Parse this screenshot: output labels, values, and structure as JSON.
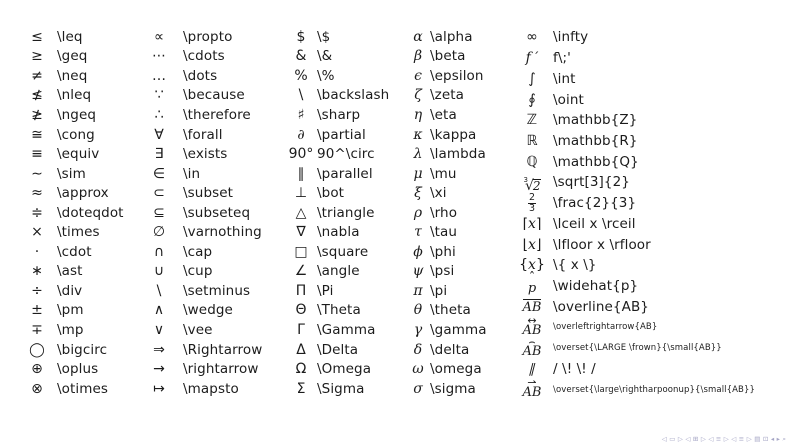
{
  "slide": {
    "background": "#ffffff",
    "text_color": "#1c1c1c"
  },
  "columns": [
    {
      "rows": [
        {
          "sym": "≤",
          "cmd": "\\leq"
        },
        {
          "sym": "≥",
          "cmd": "\\geq"
        },
        {
          "sym": "≠",
          "cmd": "\\neq"
        },
        {
          "sym": "≰",
          "cmd": "\\nleq"
        },
        {
          "sym": "≱",
          "cmd": "\\ngeq"
        },
        {
          "sym": "≅",
          "cmd": "\\cong"
        },
        {
          "sym": "≡",
          "cmd": "\\equiv"
        },
        {
          "sym": "∼",
          "cmd": "\\sim"
        },
        {
          "sym": "≈",
          "cmd": "\\approx"
        },
        {
          "sym": "≑",
          "cmd": "\\doteqdot"
        },
        {
          "sym": "×",
          "cmd": "\\times"
        },
        {
          "sym": "·",
          "cmd": "\\cdot"
        },
        {
          "sym": "∗",
          "cmd": "\\ast"
        },
        {
          "sym": "÷",
          "cmd": "\\div"
        },
        {
          "sym": "±",
          "cmd": "\\pm"
        },
        {
          "sym": "∓",
          "cmd": "\\mp"
        },
        {
          "sym": "◯",
          "cmd": "\\bigcirc"
        },
        {
          "sym": "⊕",
          "cmd": "\\oplus"
        },
        {
          "sym": "⊗",
          "cmd": "\\otimes"
        }
      ]
    },
    {
      "rows": [
        {
          "sym": "∝",
          "cmd": "\\propto"
        },
        {
          "sym": "⋯",
          "cmd": "\\cdots"
        },
        {
          "sym": "…",
          "cmd": "\\dots"
        },
        {
          "sym": "∵",
          "cmd": "\\because"
        },
        {
          "sym": "∴",
          "cmd": "\\therefore"
        },
        {
          "sym": "∀",
          "cmd": "\\forall"
        },
        {
          "sym": "∃",
          "cmd": "\\exists"
        },
        {
          "sym": "∈",
          "cmd": "\\in"
        },
        {
          "sym": "⊂",
          "cmd": "\\subset"
        },
        {
          "sym": "⊆",
          "cmd": "\\subseteq"
        },
        {
          "sym": "∅",
          "cmd": "\\varnothing"
        },
        {
          "sym": "∩",
          "cmd": "\\cap"
        },
        {
          "sym": "∪",
          "cmd": "\\cup"
        },
        {
          "sym": "\\",
          "cmd": "\\setminus"
        },
        {
          "sym": "∧",
          "cmd": "\\wedge"
        },
        {
          "sym": "∨",
          "cmd": "\\vee"
        },
        {
          "sym": "⇒",
          "cmd": "\\Rightarrow"
        },
        {
          "sym": "→",
          "cmd": "\\rightarrow"
        },
        {
          "sym": "↦",
          "cmd": "\\mapsto"
        }
      ]
    },
    {
      "rows": [
        {
          "sym": "$",
          "cmd": "\\$"
        },
        {
          "sym": "&",
          "cmd": "\\&"
        },
        {
          "sym": "%",
          "cmd": "\\%"
        },
        {
          "sym": "\\",
          "cmd": "\\backslash"
        },
        {
          "sym": "♯",
          "cmd": "\\sharp"
        },
        {
          "sym": "∂",
          "cmd": "\\partial",
          "italic": true
        },
        {
          "sym": "90°",
          "cmd": "90^\\circ"
        },
        {
          "sym": "∥",
          "cmd": "\\parallel"
        },
        {
          "sym": "⊥",
          "cmd": "\\bot"
        },
        {
          "sym": "△",
          "cmd": "\\triangle"
        },
        {
          "sym": "∇",
          "cmd": "\\nabla"
        },
        {
          "sym": "□",
          "cmd": "\\square"
        },
        {
          "sym": "∠",
          "cmd": "\\angle"
        },
        {
          "sym": "Π",
          "cmd": "\\Pi"
        },
        {
          "sym": "Θ",
          "cmd": "\\Theta"
        },
        {
          "sym": "Γ",
          "cmd": "\\Gamma"
        },
        {
          "sym": "Δ",
          "cmd": "\\Delta"
        },
        {
          "sym": "Ω",
          "cmd": "\\Omega"
        },
        {
          "sym": "Σ",
          "cmd": "\\Sigma"
        }
      ]
    },
    {
      "rows": [
        {
          "sym": "α",
          "cmd": "\\alpha",
          "italic": true
        },
        {
          "sym": "β",
          "cmd": "\\beta",
          "italic": true
        },
        {
          "sym": "ϵ",
          "cmd": "\\epsilon",
          "italic": true
        },
        {
          "sym": "ζ",
          "cmd": "\\zeta",
          "italic": true
        },
        {
          "sym": "η",
          "cmd": "\\eta",
          "italic": true
        },
        {
          "sym": "κ",
          "cmd": "\\kappa",
          "italic": true
        },
        {
          "sym": "λ",
          "cmd": "\\lambda",
          "italic": true
        },
        {
          "sym": "μ",
          "cmd": "\\mu",
          "italic": true
        },
        {
          "sym": "ξ",
          "cmd": "\\xi",
          "italic": true
        },
        {
          "sym": "ρ",
          "cmd": "\\rho",
          "italic": true
        },
        {
          "sym": "τ",
          "cmd": "\\tau",
          "italic": true
        },
        {
          "sym": "ϕ",
          "cmd": "\\phi",
          "italic": true
        },
        {
          "sym": "ψ",
          "cmd": "\\psi",
          "italic": true
        },
        {
          "sym": "π",
          "cmd": "\\pi",
          "italic": true
        },
        {
          "sym": "θ",
          "cmd": "\\theta",
          "italic": true
        },
        {
          "sym": "γ",
          "cmd": "\\gamma",
          "italic": true
        },
        {
          "sym": "δ",
          "cmd": "\\delta",
          "italic": true
        },
        {
          "sym": "ω",
          "cmd": "\\omega",
          "italic": true
        },
        {
          "sym": "σ",
          "cmd": "\\sigma",
          "italic": true
        }
      ]
    },
    {
      "rows": [
        {
          "sym": "∞",
          "cmd": "\\infty"
        },
        {
          "sym": "f ′",
          "cmd": "f\\;'",
          "italic": true
        },
        {
          "sym": "∫",
          "cmd": "\\int"
        },
        {
          "sym": "∮",
          "cmd": "\\oint"
        },
        {
          "sym": "ℤ",
          "cmd": "\\mathbb{Z}"
        },
        {
          "sym": "ℝ",
          "cmd": "\\mathbb{R}"
        },
        {
          "sym": "ℚ",
          "cmd": "\\mathbb{Q}"
        },
        {
          "special": "root",
          "index": "3",
          "radicand": "2",
          "cmd": "\\sqrt[3]{2}"
        },
        {
          "special": "frac",
          "num": "2",
          "den": "3",
          "cmd": "\\frac{2}{3}"
        },
        {
          "special": "wrap",
          "pre": "⌈",
          "base": "x",
          "post": "⌉",
          "cmd": "\\lceil x \\rceil"
        },
        {
          "special": "wrap",
          "pre": "⌊",
          "base": "x",
          "post": "⌋",
          "cmd": "\\lfloor x \\rfloor"
        },
        {
          "special": "wrap",
          "pre": "{",
          "base": "x",
          "post": "}",
          "cmd": "\\{ x \\}"
        },
        {
          "special": "overset",
          "top": "ˆ",
          "hat": true,
          "base": "p",
          "cmd": "\\widehat{p}"
        },
        {
          "special": "overline",
          "base": "AB",
          "cmd": "\\overline{AB}"
        },
        {
          "special": "overset",
          "top": "↔",
          "base": "AB",
          "cmd": "\\overleftrightarrow{AB}",
          "small_cmd": true
        },
        {
          "special": "overset",
          "top": "⌢",
          "base": "AB",
          "cmd": "\\overset{\\LARGE \\frown}{\\small{AB}}",
          "small_cmd": true
        },
        {
          "special": "pslash",
          "sym": "∥",
          "cmd": "/ \\! \\! /"
        },
        {
          "special": "overset",
          "top": "⇀",
          "base": "AB",
          "cmd": "\\overset{\\large\\rightharpoonup}{\\small{AB}}",
          "small_cmd": true
        }
      ]
    }
  ],
  "nav": {
    "color": "#a6a6c6",
    "icons": [
      {
        "name": "nav-slide-back-icon",
        "glyph": "◁"
      },
      {
        "name": "nav-slide-icon",
        "glyph": "▭"
      },
      {
        "name": "nav-slide-forward-icon",
        "glyph": "▷"
      },
      {
        "name": "nav-frame-back-icon",
        "glyph": "◁"
      },
      {
        "name": "nav-frame-icon",
        "glyph": "⊞"
      },
      {
        "name": "nav-frame-forward-icon",
        "glyph": "▷"
      },
      {
        "name": "nav-subsection-back-icon",
        "glyph": "◁"
      },
      {
        "name": "nav-subsection-icon",
        "glyph": "≡"
      },
      {
        "name": "nav-subsection-forward-icon",
        "glyph": "▷"
      },
      {
        "name": "nav-section-back-icon",
        "glyph": "◁"
      },
      {
        "name": "nav-section-icon",
        "glyph": "≡"
      },
      {
        "name": "nav-section-forward-icon",
        "glyph": "▷"
      },
      {
        "name": "nav-presentation-icon",
        "glyph": "▤"
      },
      {
        "name": "nav-appendix-icon",
        "glyph": "⊡"
      },
      {
        "name": "nav-back-icon",
        "glyph": "◂"
      },
      {
        "name": "nav-forward-icon",
        "glyph": "▸"
      },
      {
        "name": "nav-search-icon",
        "glyph": "⌕"
      }
    ]
  }
}
